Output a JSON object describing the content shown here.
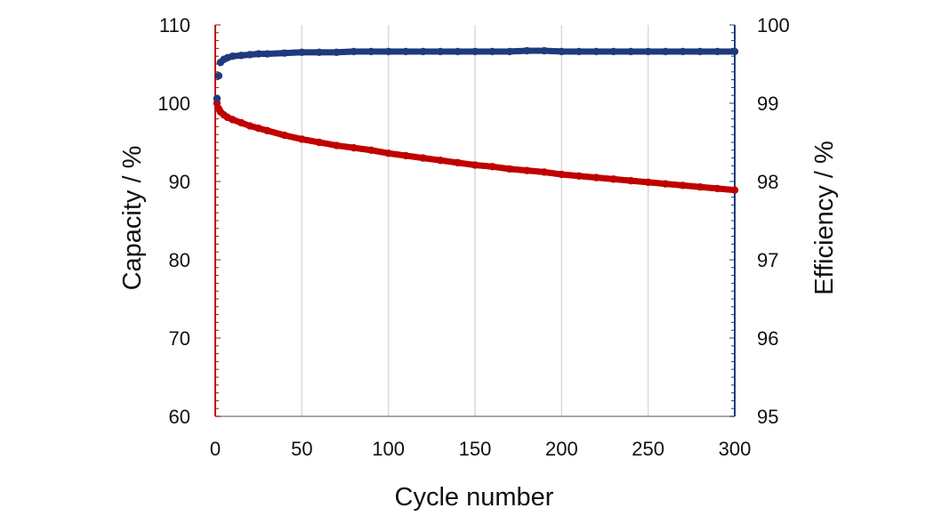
{
  "chart_data": {
    "type": "scatter",
    "title": "",
    "xlabel": "Cycle number",
    "ylabel": "Capacity / %",
    "y2label": "Efficiency / %",
    "xlim": [
      0,
      300
    ],
    "ylim": [
      60,
      110
    ],
    "y2lim": [
      95,
      100
    ],
    "xticks": [
      "0",
      "50",
      "100",
      "150",
      "200",
      "250",
      "300"
    ],
    "yticks": [
      "60",
      "70",
      "80",
      "90",
      "100",
      "110"
    ],
    "y2ticks": [
      "95",
      "96",
      "97",
      "98",
      "99",
      "100"
    ],
    "grid": "vertical",
    "colors": {
      "capacity": "#c00000",
      "efficiency": "#1f3a7d",
      "grid": "#d9d9d9"
    },
    "series": [
      {
        "name": "Capacity",
        "axis": "left",
        "color": "#c00000",
        "x": [
          1,
          2,
          3,
          5,
          7,
          10,
          15,
          20,
          25,
          30,
          40,
          50,
          60,
          70,
          80,
          90,
          100,
          110,
          120,
          130,
          140,
          150,
          160,
          170,
          180,
          190,
          200,
          210,
          220,
          230,
          240,
          250,
          260,
          270,
          280,
          290,
          300
        ],
        "values": [
          100.0,
          99.3,
          98.9,
          98.5,
          98.2,
          97.9,
          97.5,
          97.1,
          96.8,
          96.5,
          95.9,
          95.4,
          95.0,
          94.6,
          94.3,
          94.0,
          93.6,
          93.3,
          93.0,
          92.7,
          92.4,
          92.1,
          91.9,
          91.6,
          91.4,
          91.2,
          90.9,
          90.7,
          90.5,
          90.3,
          90.1,
          89.9,
          89.7,
          89.5,
          89.3,
          89.1,
          88.9
        ]
      },
      {
        "name": "Efficiency",
        "axis": "right",
        "color": "#1f3a7d",
        "x": [
          1,
          2,
          3,
          5,
          7,
          10,
          15,
          20,
          25,
          30,
          40,
          50,
          60,
          70,
          80,
          90,
          100,
          110,
          120,
          130,
          140,
          150,
          160,
          170,
          180,
          190,
          200,
          210,
          220,
          230,
          240,
          250,
          260,
          270,
          280,
          290,
          300
        ],
        "values": [
          99.06,
          99.35,
          99.52,
          99.56,
          99.58,
          99.6,
          99.61,
          99.62,
          99.63,
          99.63,
          99.64,
          99.65,
          99.65,
          99.65,
          99.66,
          99.66,
          99.66,
          99.66,
          99.66,
          99.66,
          99.66,
          99.66,
          99.66,
          99.66,
          99.67,
          99.67,
          99.66,
          99.66,
          99.66,
          99.66,
          99.66,
          99.66,
          99.66,
          99.66,
          99.66,
          99.66,
          99.66
        ]
      }
    ]
  }
}
